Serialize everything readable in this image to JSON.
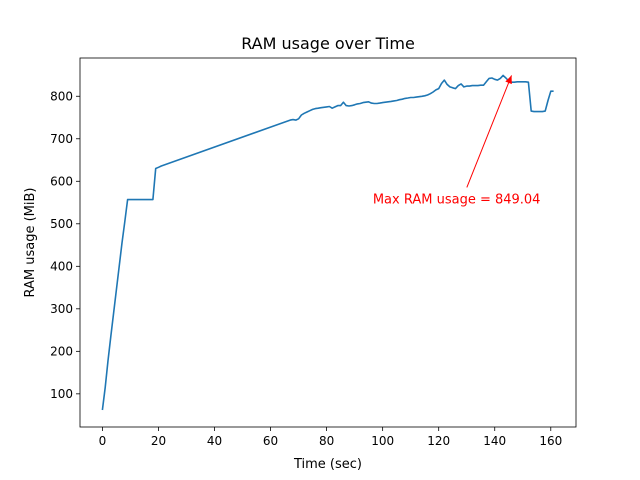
{
  "chart_data": {
    "type": "line",
    "title": "RAM usage over Time",
    "xlabel": "Time (sec)",
    "ylabel": "RAM usage (MiB)",
    "xlim": [
      -8,
      169
    ],
    "ylim": [
      22,
      890
    ],
    "xticks": [
      0,
      20,
      40,
      60,
      80,
      100,
      120,
      140,
      160
    ],
    "yticks": [
      100,
      200,
      300,
      400,
      500,
      600,
      700,
      800
    ],
    "grid": false,
    "series": [
      {
        "color": "#1f77b4",
        "x": [
          0,
          1,
          2,
          3,
          4,
          5,
          6,
          7,
          8,
          9,
          10,
          11,
          12,
          13,
          14,
          15,
          16,
          17,
          18,
          19,
          20,
          21,
          67,
          68,
          69,
          70,
          71,
          72,
          73,
          74,
          75,
          76,
          77,
          78,
          79,
          80,
          81,
          82,
          83,
          84,
          85,
          86,
          87,
          88,
          89,
          90,
          91,
          92,
          93,
          94,
          95,
          96,
          97,
          98,
          99,
          100,
          101,
          102,
          103,
          104,
          105,
          106,
          107,
          108,
          109,
          110,
          111,
          112,
          113,
          114,
          115,
          116,
          117,
          118,
          119,
          120,
          121,
          122,
          123,
          124,
          125,
          126,
          127,
          128,
          129,
          130,
          131,
          132,
          133,
          134,
          135,
          136,
          137,
          138,
          139,
          140,
          141,
          142,
          143,
          144,
          145,
          146,
          147,
          148,
          149,
          150,
          151,
          152,
          153,
          154,
          155,
          156,
          157,
          158,
          159,
          160,
          161
        ],
        "y": [
          62,
          115,
          178,
          235,
          290,
          345,
          400,
          455,
          505,
          557,
          557,
          557,
          557,
          557,
          557,
          557,
          557,
          557,
          557,
          630,
          633,
          636,
          744,
          745,
          744,
          747,
          756,
          760,
          763,
          766,
          769,
          771,
          772,
          773,
          774,
          775,
          776,
          772,
          775,
          778,
          778,
          786,
          778,
          777,
          778,
          780,
          782,
          783,
          785,
          786,
          787,
          784,
          783,
          783,
          784,
          785,
          786,
          787,
          788,
          789,
          790,
          792,
          793,
          795,
          796,
          797,
          797,
          798,
          799,
          800,
          801,
          803,
          806,
          810,
          815,
          818,
          830,
          838,
          828,
          822,
          820,
          818,
          825,
          829,
          822,
          824,
          824,
          825,
          825,
          825,
          826,
          826,
          834,
          842,
          843,
          840,
          838,
          842,
          849,
          843,
          836,
          833,
          833,
          834,
          834,
          834,
          834,
          833,
          765,
          764,
          764,
          764,
          764,
          765,
          790,
          812,
          812
        ]
      }
    ],
    "annotations": [
      {
        "text": "Max RAM usage = 849.04",
        "color": "#ff0000",
        "text_x": 96.5,
        "text_y": 548,
        "arrow_to_x": 146,
        "arrow_to_y": 849
      }
    ]
  }
}
